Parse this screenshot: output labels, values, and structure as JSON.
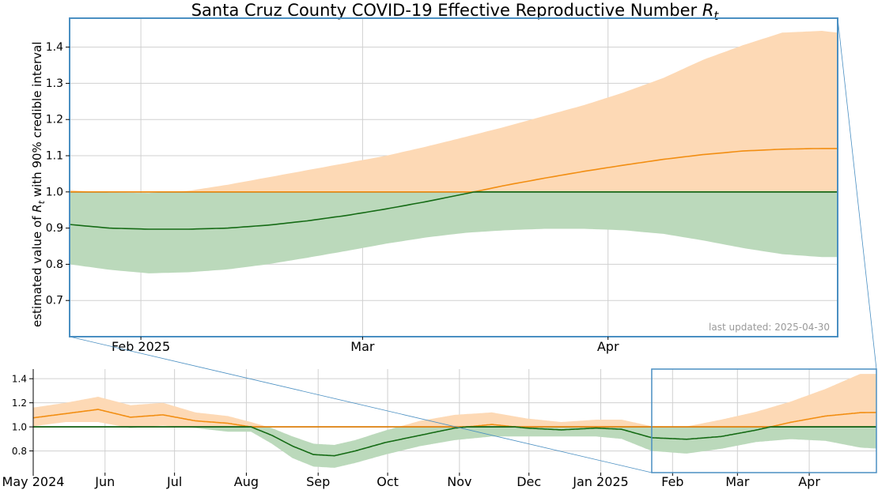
{
  "chart_data": [
    {
      "type": "area",
      "panel": "zoom",
      "title_main": "Santa Cruz County COVID-19 Effective Reproductive Number ",
      "title_symbol": "R",
      "title_sub": "t",
      "ylabel_pre": "estimated value of ",
      "ylabel_symbol": "R",
      "ylabel_sub": "t",
      "ylabel_post": " with 90% credible interval",
      "ylim": [
        0.6,
        1.48
      ],
      "yticks": [
        "0.7",
        "0.8",
        "0.9",
        "1.0",
        "1.1",
        "1.2",
        "1.3",
        "1.4"
      ],
      "xlim": [
        "2025-01-23",
        "2025-04-30"
      ],
      "xticks": [
        {
          "date": "2025-02-01",
          "label": "Feb 2025"
        },
        {
          "date": "2025-03-01",
          "label": "Mar"
        },
        {
          "date": "2025-04-01",
          "label": "Apr"
        }
      ],
      "reference_line": 1.0,
      "grid": true,
      "annotation": "last updated: 2025-04-30",
      "series": [
        {
          "x": [
            "2025-01-23",
            "2025-01-28",
            "2025-02-02",
            "2025-02-07",
            "2025-02-12",
            "2025-02-17",
            "2025-02-22",
            "2025-02-27",
            "2025-03-04",
            "2025-03-09",
            "2025-03-14",
            "2025-03-19",
            "2025-03-24",
            "2025-03-29",
            "2025-04-03",
            "2025-04-08",
            "2025-04-13",
            "2025-04-18",
            "2025-04-23",
            "2025-04-28",
            "2025-04-30"
          ],
          "median": [
            0.91,
            0.9,
            0.897,
            0.897,
            0.9,
            0.908,
            0.92,
            0.935,
            0.953,
            0.973,
            0.995,
            1.018,
            1.038,
            1.057,
            1.074,
            1.09,
            1.103,
            1.113,
            1.118,
            1.12,
            1.12
          ],
          "lower": [
            0.8,
            0.785,
            0.775,
            0.778,
            0.786,
            0.8,
            0.818,
            0.837,
            0.857,
            0.874,
            0.887,
            0.894,
            0.898,
            0.898,
            0.894,
            0.884,
            0.866,
            0.845,
            0.828,
            0.82,
            0.82
          ],
          "upper": [
            1.005,
            0.998,
            0.997,
            1.003,
            1.02,
            1.04,
            1.06,
            1.08,
            1.1,
            1.125,
            1.152,
            1.18,
            1.21,
            1.24,
            1.275,
            1.315,
            1.365,
            1.405,
            1.44,
            1.445,
            1.44
          ]
        }
      ]
    },
    {
      "type": "area",
      "panel": "overview",
      "ylim": [
        0.62,
        1.48
      ],
      "yticks": [
        "0.8",
        "1.0",
        "1.2",
        "1.4"
      ],
      "xlim": [
        "2024-05-01",
        "2025-04-30"
      ],
      "xticks": [
        {
          "date": "2024-05-01",
          "label": "May 2024"
        },
        {
          "date": "2024-06-01",
          "label": "Jun"
        },
        {
          "date": "2024-07-01",
          "label": "Jul"
        },
        {
          "date": "2024-08-01",
          "label": "Aug"
        },
        {
          "date": "2024-09-01",
          "label": "Sep"
        },
        {
          "date": "2024-10-01",
          "label": "Oct"
        },
        {
          "date": "2024-11-01",
          "label": "Nov"
        },
        {
          "date": "2024-12-01",
          "label": "Dec"
        },
        {
          "date": "2025-01-01",
          "label": "Jan 2025"
        },
        {
          "date": "2025-02-01",
          "label": "Feb"
        },
        {
          "date": "2025-03-01",
          "label": "Mar"
        },
        {
          "date": "2025-04-01",
          "label": "Apr"
        }
      ],
      "reference_line": 1.0,
      "grid": true,
      "zoom_window": [
        "2025-01-23",
        "2025-04-30"
      ],
      "series": [
        {
          "x": [
            "2024-05-01",
            "2024-05-15",
            "2024-05-29",
            "2024-06-12",
            "2024-06-26",
            "2024-07-10",
            "2024-07-24",
            "2024-08-03",
            "2024-08-12",
            "2024-08-21",
            "2024-08-30",
            "2024-09-08",
            "2024-09-17",
            "2024-09-30",
            "2024-10-15",
            "2024-10-30",
            "2024-11-15",
            "2024-11-30",
            "2024-12-15",
            "2024-12-30",
            "2025-01-10",
            "2025-01-23",
            "2025-02-07",
            "2025-02-22",
            "2025-03-09",
            "2025-03-24",
            "2025-04-08",
            "2025-04-23",
            "2025-04-30"
          ],
          "median": [
            1.075,
            1.11,
            1.145,
            1.08,
            1.1,
            1.05,
            1.03,
            1.0,
            0.93,
            0.84,
            0.77,
            0.76,
            0.8,
            0.87,
            0.93,
            0.99,
            1.02,
            0.99,
            0.975,
            0.99,
            0.98,
            0.91,
            0.897,
            0.92,
            0.973,
            1.038,
            1.09,
            1.118,
            1.12
          ],
          "lower": [
            1.005,
            1.04,
            1.04,
            0.99,
            1.01,
            0.99,
            0.96,
            0.96,
            0.86,
            0.74,
            0.67,
            0.66,
            0.7,
            0.77,
            0.84,
            0.89,
            0.92,
            0.92,
            0.92,
            0.92,
            0.9,
            0.8,
            0.778,
            0.818,
            0.874,
            0.898,
            0.884,
            0.828,
            0.82
          ],
          "upper": [
            1.16,
            1.2,
            1.25,
            1.18,
            1.2,
            1.12,
            1.09,
            1.04,
            0.99,
            0.92,
            0.86,
            0.85,
            0.89,
            0.97,
            1.05,
            1.1,
            1.12,
            1.07,
            1.04,
            1.06,
            1.06,
            1.005,
            1.003,
            1.06,
            1.125,
            1.21,
            1.315,
            1.44,
            1.44
          ]
        }
      ]
    }
  ],
  "colors": {
    "above_fill": "#fdd9b5",
    "above_line": "#f28e12",
    "below_fill": "#bbd9bb",
    "below_line": "#156b15",
    "frame": "#4a8fc2",
    "reference": "#000000",
    "grid": "#d0d0d0",
    "annotation": "#999999"
  }
}
